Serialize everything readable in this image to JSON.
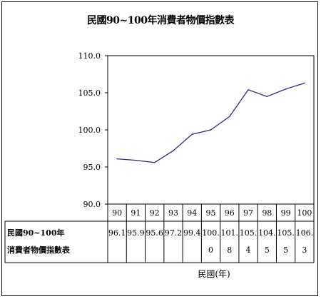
{
  "chart_data": {
    "type": "line",
    "title": "民國90~100年消費者物價指數表",
    "xlabel": "民國(年)",
    "ylabel": "",
    "categories": [
      "90",
      "91",
      "92",
      "93",
      "94",
      "95",
      "96",
      "97",
      "98",
      "99",
      "100"
    ],
    "series": [
      {
        "name": "民國90~100年消費者物價指數表",
        "values": [
          96.1,
          95.9,
          95.6,
          97.2,
          99.4,
          100.0,
          101.8,
          105.4,
          104.5,
          105.5,
          106.3
        ],
        "value_labels": [
          "96.1",
          "95.9",
          "95.6",
          "97.2",
          "99.4",
          "100.0",
          "101.8",
          "105.4",
          "104.5",
          "105.5",
          "106.3"
        ],
        "color": "#2b2f8f"
      }
    ],
    "y_ticks": [
      "90.0",
      "95.0",
      "100.0",
      "105.0",
      "110.0"
    ],
    "ylim": [
      90,
      110
    ],
    "grid": false,
    "legend": "data-table"
  }
}
